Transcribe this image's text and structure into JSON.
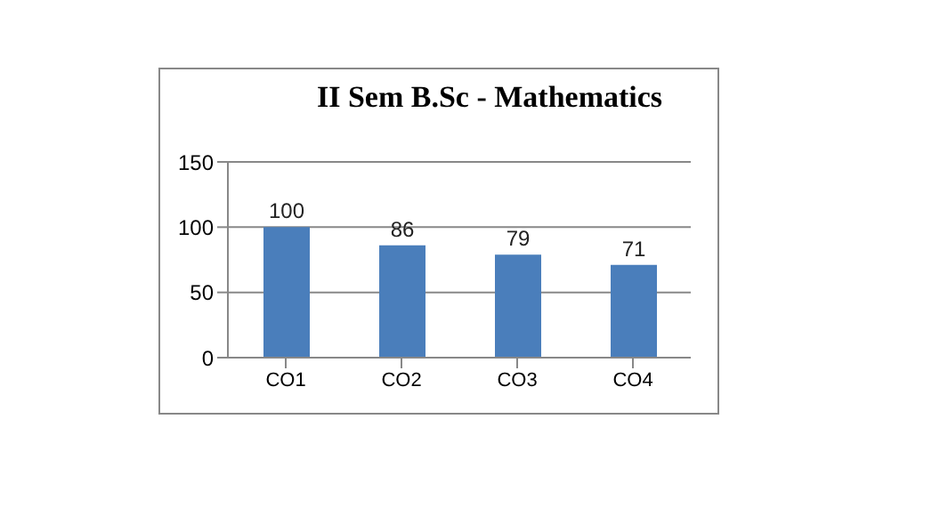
{
  "chart_data": {
    "type": "bar",
    "title": "II Sem B.Sc - Mathematics",
    "categories": [
      "CO1",
      "CO2",
      "CO3",
      "CO4"
    ],
    "values": [
      100,
      86,
      79,
      71
    ],
    "color": "#4a7ebb",
    "ylim": [
      0,
      150
    ],
    "yticks": [
      0,
      50,
      100,
      150
    ],
    "grid": "y",
    "data_labels": true
  }
}
